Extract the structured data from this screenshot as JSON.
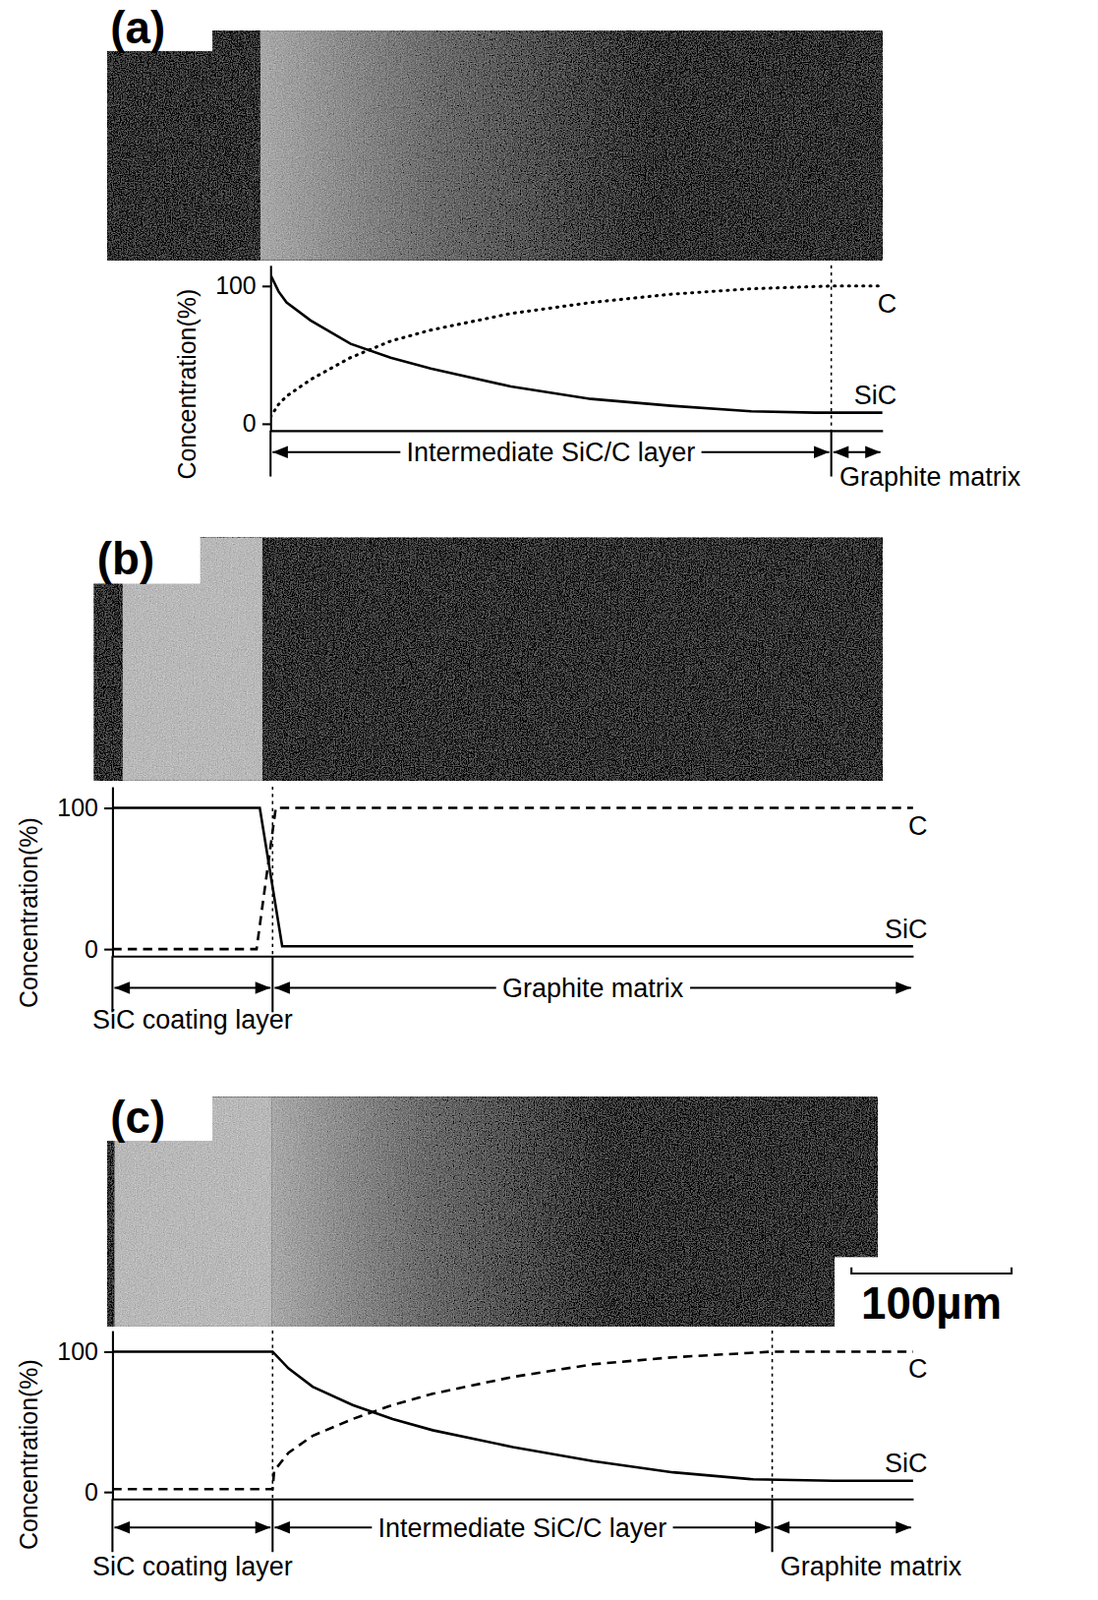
{
  "chart_data": [
    {
      "type": "line",
      "title": "(a)",
      "y_label": "Concentration(%)",
      "xlim": [
        0,
        382
      ],
      "xticks": [],
      "ylim": [
        -5,
        115
      ],
      "yticks": [
        0,
        100
      ],
      "tick_labels": "y",
      "series": [
        {
          "name": "C",
          "color": "#000000",
          "line_style": "dotted",
          "x": [
            0,
            5,
            10,
            25,
            50,
            75,
            100,
            150,
            200,
            250,
            300,
            350,
            382
          ],
          "values": [
            5,
            14,
            20,
            32,
            48,
            60,
            68,
            80,
            88,
            94,
            98,
            100,
            100
          ]
        },
        {
          "name": "SiC",
          "color": "#000000",
          "line_style": "solid",
          "x": [
            0,
            5,
            10,
            25,
            50,
            75,
            100,
            150,
            200,
            250,
            300,
            340,
            382
          ],
          "values": [
            108,
            96,
            88,
            75,
            58,
            48,
            40,
            27,
            18,
            13,
            9,
            8,
            8
          ]
        }
      ],
      "layers": [
        {
          "label": "Intermediate SiC/C layer",
          "from": 0,
          "to": 350
        },
        {
          "label": "Graphite matrix",
          "from": 350,
          "to": 382
        }
      ]
    },
    {
      "type": "line",
      "title": "(b)",
      "y_label": "Concentration(%)",
      "xlim": [
        0,
        500
      ],
      "xticks": [],
      "ylim": [
        -5,
        115
      ],
      "yticks": [
        0,
        100
      ],
      "tick_labels": "y",
      "series": [
        {
          "name": "C",
          "color": "#000000",
          "line_style": "dashed",
          "x": [
            0,
            90,
            102,
            500
          ],
          "values": [
            0,
            0,
            100,
            100
          ]
        },
        {
          "name": "SiC",
          "color": "#000000",
          "line_style": "solid",
          "x": [
            0,
            92,
            106,
            500
          ],
          "values": [
            100,
            100,
            2,
            2
          ]
        }
      ],
      "layers": [
        {
          "label": "SiC coating layer",
          "from": 0,
          "to": 100
        },
        {
          "label": "Graphite matrix",
          "from": 100,
          "to": 500
        }
      ]
    },
    {
      "type": "line",
      "title": "(c)",
      "y_label": "Concentration(%)",
      "xlim": [
        0,
        500
      ],
      "xticks": [],
      "ylim": [
        -5,
        115
      ],
      "yticks": [
        0,
        100
      ],
      "tick_labels": "y",
      "series": [
        {
          "name": "C",
          "color": "#000000",
          "line_style": "dashed",
          "x": [
            0,
            100,
            101,
            110,
            125,
            150,
            175,
            200,
            250,
            300,
            350,
            412,
            500
          ],
          "values": [
            2,
            2,
            15,
            28,
            40,
            52,
            62,
            70,
            82,
            91,
            96,
            100,
            100
          ]
        },
        {
          "name": "SiC",
          "color": "#000000",
          "line_style": "solid",
          "x": [
            0,
            100,
            110,
            125,
            150,
            175,
            200,
            250,
            300,
            350,
            400,
            450,
            500
          ],
          "values": [
            100,
            100,
            88,
            75,
            62,
            52,
            44,
            32,
            22,
            14,
            9,
            8,
            8
          ]
        }
      ],
      "layers": [
        {
          "label": "SiC coating layer",
          "from": 0,
          "to": 100
        },
        {
          "label": "Intermediate SiC/C layer",
          "from": 100,
          "to": 412
        },
        {
          "label": "Graphite matrix",
          "from": 412,
          "to": 500
        }
      ],
      "scale_bar": {
        "label": "100µm",
        "length": 100
      }
    }
  ]
}
